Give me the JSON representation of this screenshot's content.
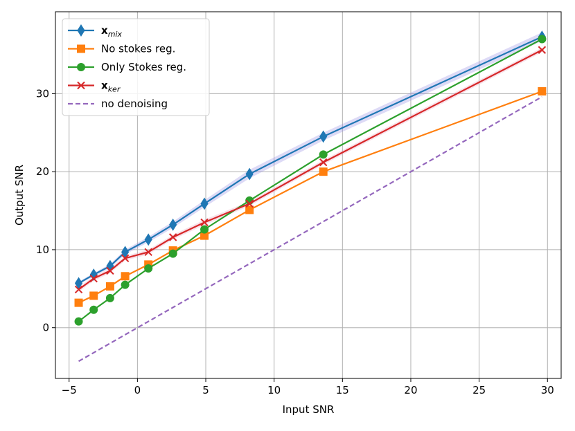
{
  "chart_data": {
    "type": "line",
    "title": "",
    "xlabel": "Input SNR",
    "ylabel": "Output SNR",
    "xlim": [
      -6,
      31
    ],
    "ylim": [
      -6.5,
      40.5
    ],
    "xticks": [
      -5,
      0,
      5,
      10,
      15,
      20,
      25,
      30
    ],
    "xtick_labels": [
      "−5",
      "0",
      "5",
      "10",
      "15",
      "20",
      "25",
      "30"
    ],
    "yticks": [
      0,
      10,
      20,
      30
    ],
    "ytick_labels": [
      "0",
      "10",
      "20",
      "30"
    ],
    "grid": true,
    "legend_position": "top-left",
    "x": [
      -4.3,
      -3.2,
      -2.0,
      -0.9,
      0.8,
      2.6,
      4.9,
      8.2,
      13.6,
      29.6
    ],
    "series": [
      {
        "name": "x",
        "name_subscript": "mix",
        "color": "#1f77b4",
        "marker": "diamond",
        "values": [
          5.7,
          6.8,
          7.9,
          9.7,
          11.3,
          13.2,
          15.9,
          19.7,
          24.5,
          37.3
        ],
        "band": [
          0.2,
          0.2,
          0.25,
          0.3,
          0.35,
          0.4,
          0.45,
          0.55,
          0.5,
          0.55
        ]
      },
      {
        "name": "No stokes reg.",
        "color": "#ff7f0e",
        "marker": "square",
        "values": [
          3.2,
          4.1,
          5.3,
          6.6,
          8.1,
          9.9,
          11.8,
          15.1,
          20.0,
          30.3
        ]
      },
      {
        "name": "Only Stokes reg.",
        "color": "#2ca02c",
        "marker": "circle",
        "values": [
          0.8,
          2.3,
          3.8,
          5.5,
          7.6,
          9.5,
          12.6,
          16.3,
          22.2,
          37.0
        ]
      },
      {
        "name": "x",
        "name_subscript": "ker",
        "color": "#d62728",
        "marker": "x",
        "values": [
          4.9,
          6.3,
          7.3,
          8.9,
          9.7,
          11.6,
          13.5,
          15.9,
          21.2,
          35.6
        ],
        "band": [
          0.3,
          0.3,
          0.3,
          0.3,
          0.3,
          0.3,
          0.35,
          0.3,
          0.3,
          0.3
        ]
      },
      {
        "name": "no denoising",
        "color": "#9467bd",
        "marker": "none",
        "dashed": true,
        "values": [
          -4.3,
          -3.2,
          -2.0,
          -0.9,
          0.8,
          2.6,
          4.9,
          8.2,
          13.6,
          29.6
        ]
      }
    ]
  }
}
